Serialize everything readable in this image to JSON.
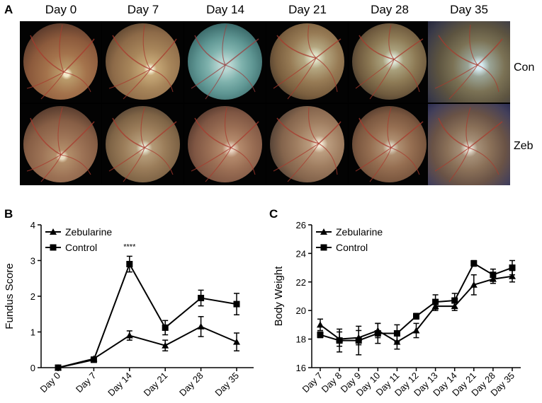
{
  "panel_a": {
    "letter": "A",
    "days": [
      "Day 0",
      "Day 7",
      "Day 14",
      "Day 21",
      "Day 28",
      "Day 35"
    ],
    "rows": [
      "Con",
      "Zeb"
    ]
  },
  "chart_data": [
    {
      "type": "line",
      "panel": "B",
      "title": "",
      "xlabel": "",
      "ylabel": "Fundus Score",
      "categories": [
        "Day 0",
        "Day 7",
        "Day 14",
        "Day 21",
        "Day 28",
        "Day 35"
      ],
      "ylim": [
        0,
        4
      ],
      "yticks": [
        0,
        1,
        2,
        3,
        4
      ],
      "legend_position": "top-left",
      "series": [
        {
          "name": "Zebularine",
          "marker": "triangle",
          "values": [
            0,
            0.25,
            0.9,
            0.62,
            1.15,
            0.72
          ],
          "errors": [
            0.05,
            0.05,
            0.13,
            0.15,
            0.28,
            0.25
          ]
        },
        {
          "name": "Control",
          "marker": "square",
          "values": [
            0,
            0.22,
            2.9,
            1.12,
            1.95,
            1.78
          ],
          "errors": [
            0.05,
            0.05,
            0.22,
            0.2,
            0.22,
            0.3
          ]
        }
      ],
      "annotations": [
        {
          "category": "Day 14",
          "text": "****"
        }
      ]
    },
    {
      "type": "line",
      "panel": "C",
      "title": "",
      "xlabel": "",
      "ylabel": "Body Weight",
      "categories": [
        "Day 7",
        "Day 8",
        "Day 9",
        "Day 10",
        "Day 11",
        "Day 12",
        "Day 13",
        "Day 14",
        "Day 21",
        "Day 28",
        "Day 35"
      ],
      "ylim": [
        16,
        26
      ],
      "yticks": [
        16,
        18,
        20,
        22,
        24,
        26
      ],
      "legend_position": "top-left",
      "series": [
        {
          "name": "Zebularine",
          "marker": "triangle",
          "values": [
            19.0,
            18.0,
            18.1,
            18.6,
            17.8,
            18.6,
            20.3,
            20.3,
            21.8,
            22.2,
            22.4
          ],
          "errors": [
            0.4,
            0.5,
            0.5,
            0.5,
            0.5,
            0.5,
            0.3,
            0.3,
            0.7,
            0.3,
            0.4
          ]
        },
        {
          "name": "Control",
          "marker": "square",
          "values": [
            18.3,
            17.9,
            17.9,
            18.4,
            18.4,
            19.6,
            20.6,
            20.7,
            23.3,
            22.5,
            23.0
          ],
          "errors": [
            0.2,
            0.8,
            1.0,
            0.7,
            0.6,
            0.2,
            0.5,
            0.5,
            0.2,
            0.4,
            0.5
          ]
        }
      ]
    }
  ]
}
